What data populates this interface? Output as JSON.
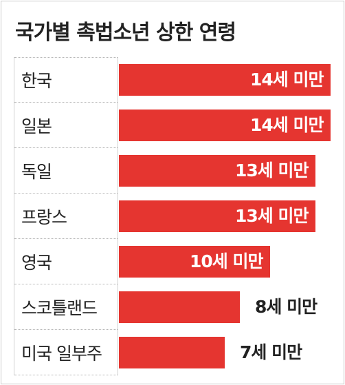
{
  "chart_data": {
    "type": "bar",
    "orientation": "horizontal",
    "title": "국가별 촉법소년 상한 연령",
    "categories": [
      "한국",
      "일본",
      "독일",
      "프랑스",
      "영국",
      "스코틀랜드",
      "미국 일부주"
    ],
    "values": [
      14,
      14,
      13,
      13,
      10,
      8,
      7
    ],
    "value_labels": [
      "14세 미만",
      "14세 미만",
      "13세 미만",
      "13세 미만",
      "10세 미만",
      "8세 미만",
      "7세 미만"
    ],
    "bar_color": "#e53530",
    "grid": false,
    "legend": "none"
  }
}
